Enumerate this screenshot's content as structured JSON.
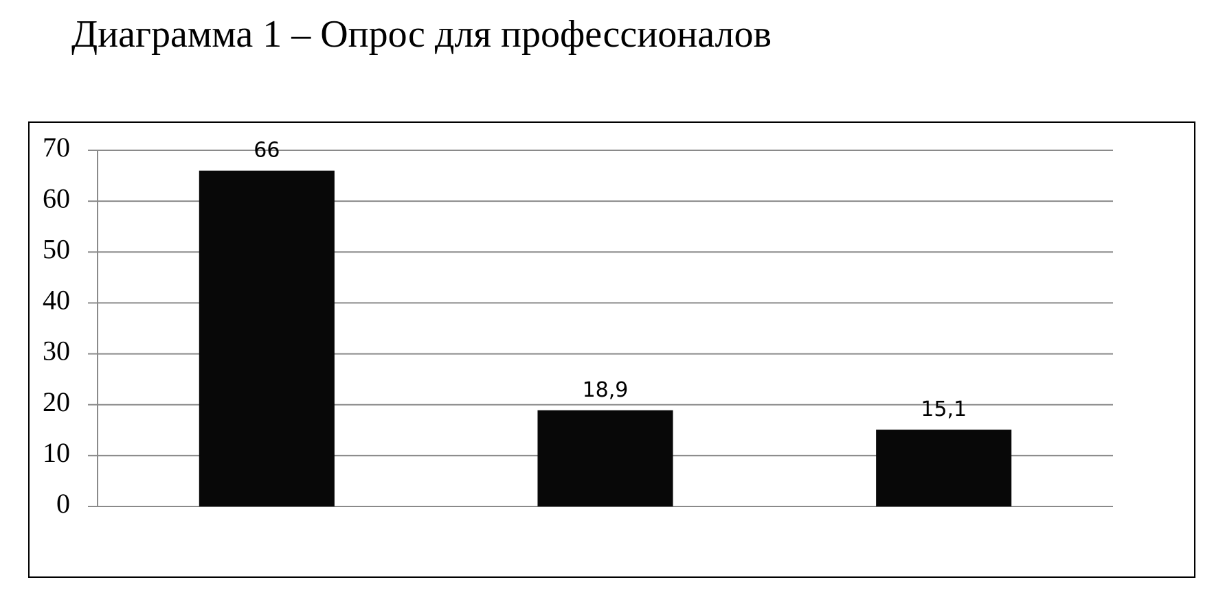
{
  "chart_data": {
    "type": "bar",
    "title": "Диаграмма 1 – Опрос для профессионалов",
    "categories": [
      null,
      null,
      null
    ],
    "values": [
      66,
      18.9,
      15.1
    ],
    "value_labels": [
      "66",
      "18,9",
      "15,1"
    ],
    "color": "#080808",
    "ylim": [
      0,
      70
    ],
    "yticks": [
      0,
      10,
      20,
      30,
      40,
      50,
      60,
      70
    ],
    "grid": true
  }
}
